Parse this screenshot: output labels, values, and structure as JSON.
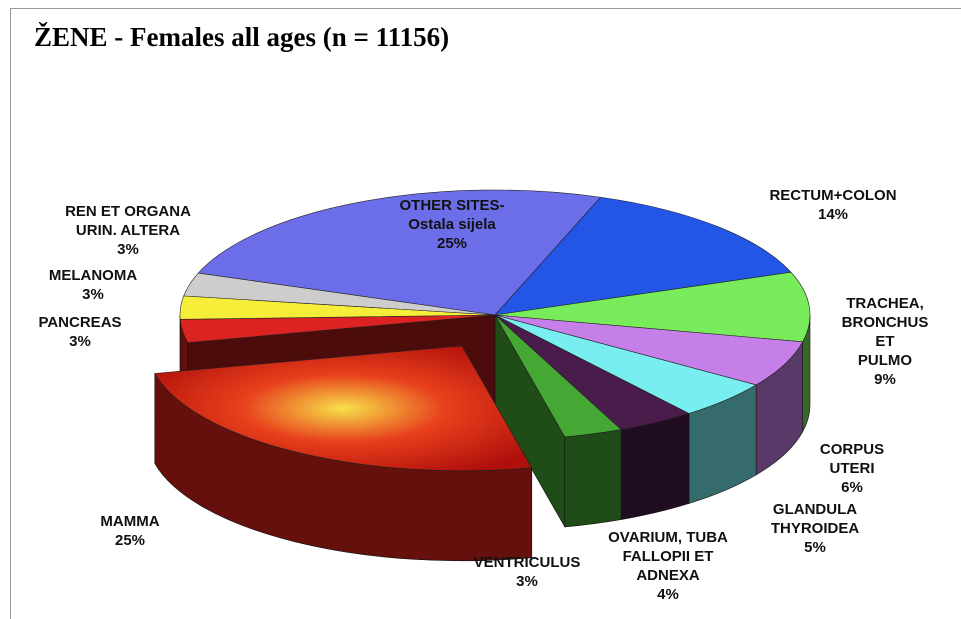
{
  "chart_data": {
    "type": "pie",
    "title": "ŽENE - Females all ages (n = 11156)",
    "categories": [
      "OTHER SITES-\nOstala sijela",
      "RECTUM+COLON",
      "TRACHEA,\nBRONCHUS ET\nPULMO",
      "CORPUS UTERI",
      "GLANDULA\nTHYROIDEA",
      "OVARIUM, TUBA\nFALLOPII ET\nADNEXA",
      "VENTRICULUS",
      "MAMMA",
      "PANCREAS",
      "MELANOMA",
      "REN ET ORGANA\nURIN. ALTERA"
    ],
    "values": [
      25,
      14,
      9,
      6,
      5,
      4,
      3,
      25,
      3,
      3,
      3
    ],
    "value_labels": [
      "25%",
      "14%",
      "9%",
      "6%",
      "5%",
      "4%",
      "3%",
      "25%",
      "3%",
      "3%",
      "3%"
    ],
    "colors": [
      "#6c6ee9",
      "#2356e6",
      "#78ec5a",
      "#c67fe8",
      "#78eef0",
      "#4a1c4c",
      "#45a834",
      "#e0241c",
      "#dd2222",
      "#f7ee3a",
      "#cdcdcd"
    ]
  }
}
